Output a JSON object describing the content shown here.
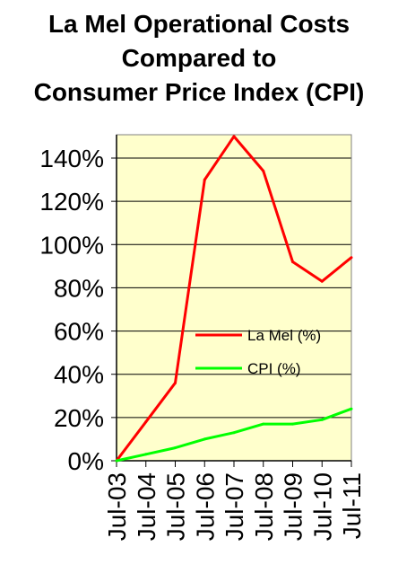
{
  "chart_data": {
    "type": "line",
    "title_lines": [
      "La Mel Operational Costs",
      "Compared to",
      "Consumer Price Index (CPI)"
    ],
    "categories": [
      "Jul-03",
      "Jul-04",
      "Jul-05",
      "Jul-06",
      "Jul-07",
      "Jul-08",
      "Jul-09",
      "Jul-10",
      "Jul-11"
    ],
    "y_ticks": [
      "0%",
      "20%",
      "40%",
      "60%",
      "80%",
      "100%",
      "120%",
      "140%"
    ],
    "ylim": [
      0,
      140
    ],
    "grid": true,
    "plot_background": "#ffffcc",
    "legend_position": "center-right",
    "series": [
      {
        "name": "La Mel (%)",
        "color": "#ff0000",
        "values": [
          0,
          18,
          36,
          130,
          150,
          134,
          92,
          83,
          94
        ]
      },
      {
        "name": "CPI (%)",
        "color": "#00ff00",
        "values": [
          0,
          3,
          6,
          10,
          13,
          17,
          17,
          19,
          24
        ]
      }
    ]
  }
}
